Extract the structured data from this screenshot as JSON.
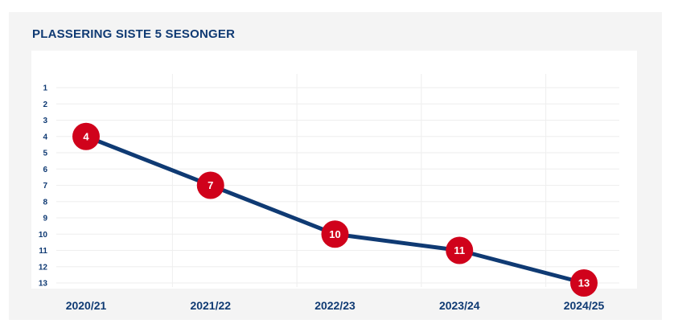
{
  "title": "PLASSERING SISTE 5 SESONGER",
  "colors": {
    "background": "#f4f4f4",
    "plot_background": "#ffffff",
    "line": "#0f3a73",
    "marker": "#d0021b",
    "marker_text": "#ffffff",
    "text": "#0f3a73",
    "grid": "#eeeeee"
  },
  "chart_data": {
    "type": "line",
    "title": "PLASSERING SISTE 5 SESONGER",
    "xlabel": "",
    "ylabel": "",
    "categories": [
      "2020/21",
      "2021/22",
      "2022/23",
      "2023/24",
      "2024/25"
    ],
    "series": [
      {
        "values": [
          4,
          7,
          10,
          11,
          13
        ],
        "data_labels": [
          "4",
          "7",
          "10",
          "11",
          "13"
        ]
      }
    ],
    "y_ticks": [
      "1",
      "2",
      "3",
      "4",
      "5",
      "6",
      "7",
      "8",
      "9",
      "10",
      "11",
      "12",
      "13"
    ],
    "ylim": [
      1,
      13
    ],
    "y_inverted": true,
    "grid": true,
    "legend": "none"
  }
}
